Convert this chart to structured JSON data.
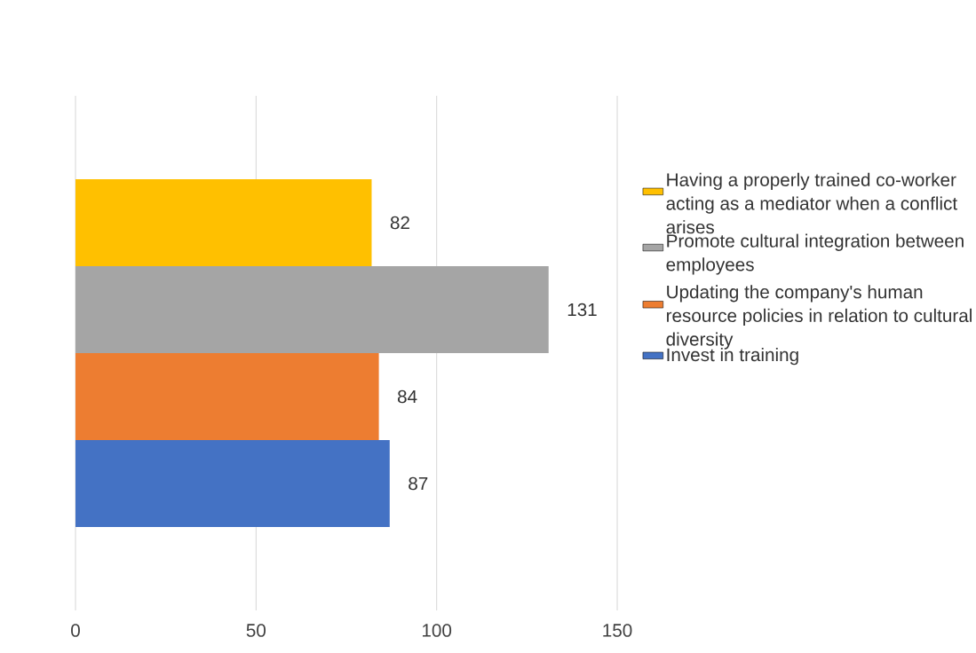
{
  "chart_data": {
    "type": "bar",
    "orientation": "horizontal",
    "categories": [
      null
    ],
    "series": [
      {
        "name": "Invest in training",
        "color": "#4472c4",
        "values": [
          87
        ]
      },
      {
        "name": "Updating the company's human resource policies in relation to cultural diversity",
        "color": "#ed7d31",
        "values": [
          84
        ]
      },
      {
        "name": "Promote cultural integration between employees",
        "color": "#a5a5a5",
        "values": [
          131
        ]
      },
      {
        "name": "Having a properly trained co-worker acting as a mediator when a conflict arises",
        "color": "#ffc000",
        "values": [
          82
        ]
      }
    ],
    "xlim": [
      0,
      150
    ],
    "xticks": [
      0,
      50,
      100,
      150
    ],
    "grid": "x",
    "legend": "right",
    "data_labels": true
  }
}
